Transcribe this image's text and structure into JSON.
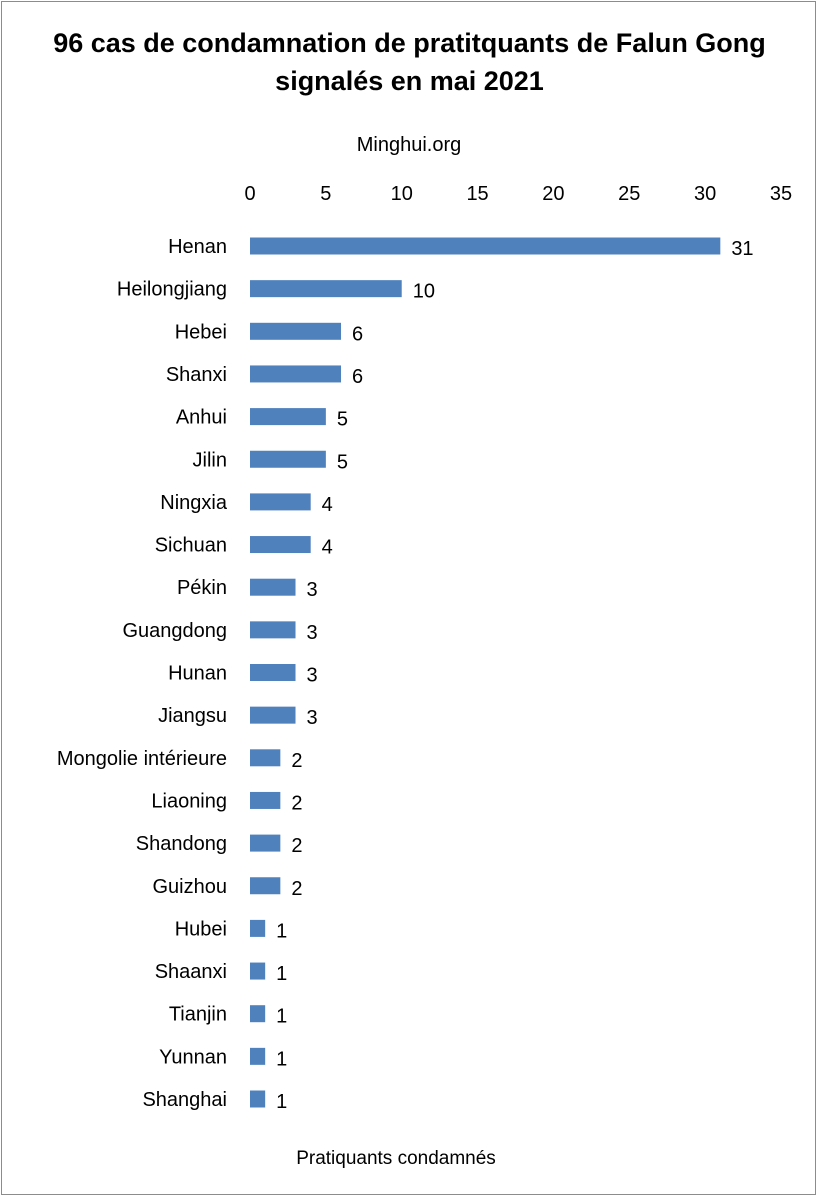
{
  "chart_data": {
    "type": "bar",
    "orientation": "horizontal",
    "title": "96 cas de condamnation de pratitquants de Falun Gong signalés en mai 2021",
    "subtitle": "Minghui.org",
    "xlabel": "Pratiquants condamnés",
    "ylabel": "",
    "xlim": [
      0,
      35
    ],
    "ticks": [
      0,
      5,
      10,
      15,
      20,
      25,
      30,
      35
    ],
    "bar_color": "#4f81bd",
    "categories": [
      "Henan",
      "Heilongjiang",
      "Hebei",
      "Shanxi",
      "Anhui",
      "Jilin",
      "Ningxia",
      "Sichuan",
      "Pékin",
      "Guangdong",
      "Hunan",
      "Jiangsu",
      "Mongolie intérieure",
      "Liaoning",
      "Shandong",
      "Guizhou",
      "Hubei",
      "Shaanxi",
      "Tianjin",
      "Yunnan",
      "Shanghai"
    ],
    "values": [
      31,
      10,
      6,
      6,
      5,
      5,
      4,
      4,
      3,
      3,
      3,
      3,
      2,
      2,
      2,
      2,
      1,
      1,
      1,
      1,
      1
    ]
  }
}
